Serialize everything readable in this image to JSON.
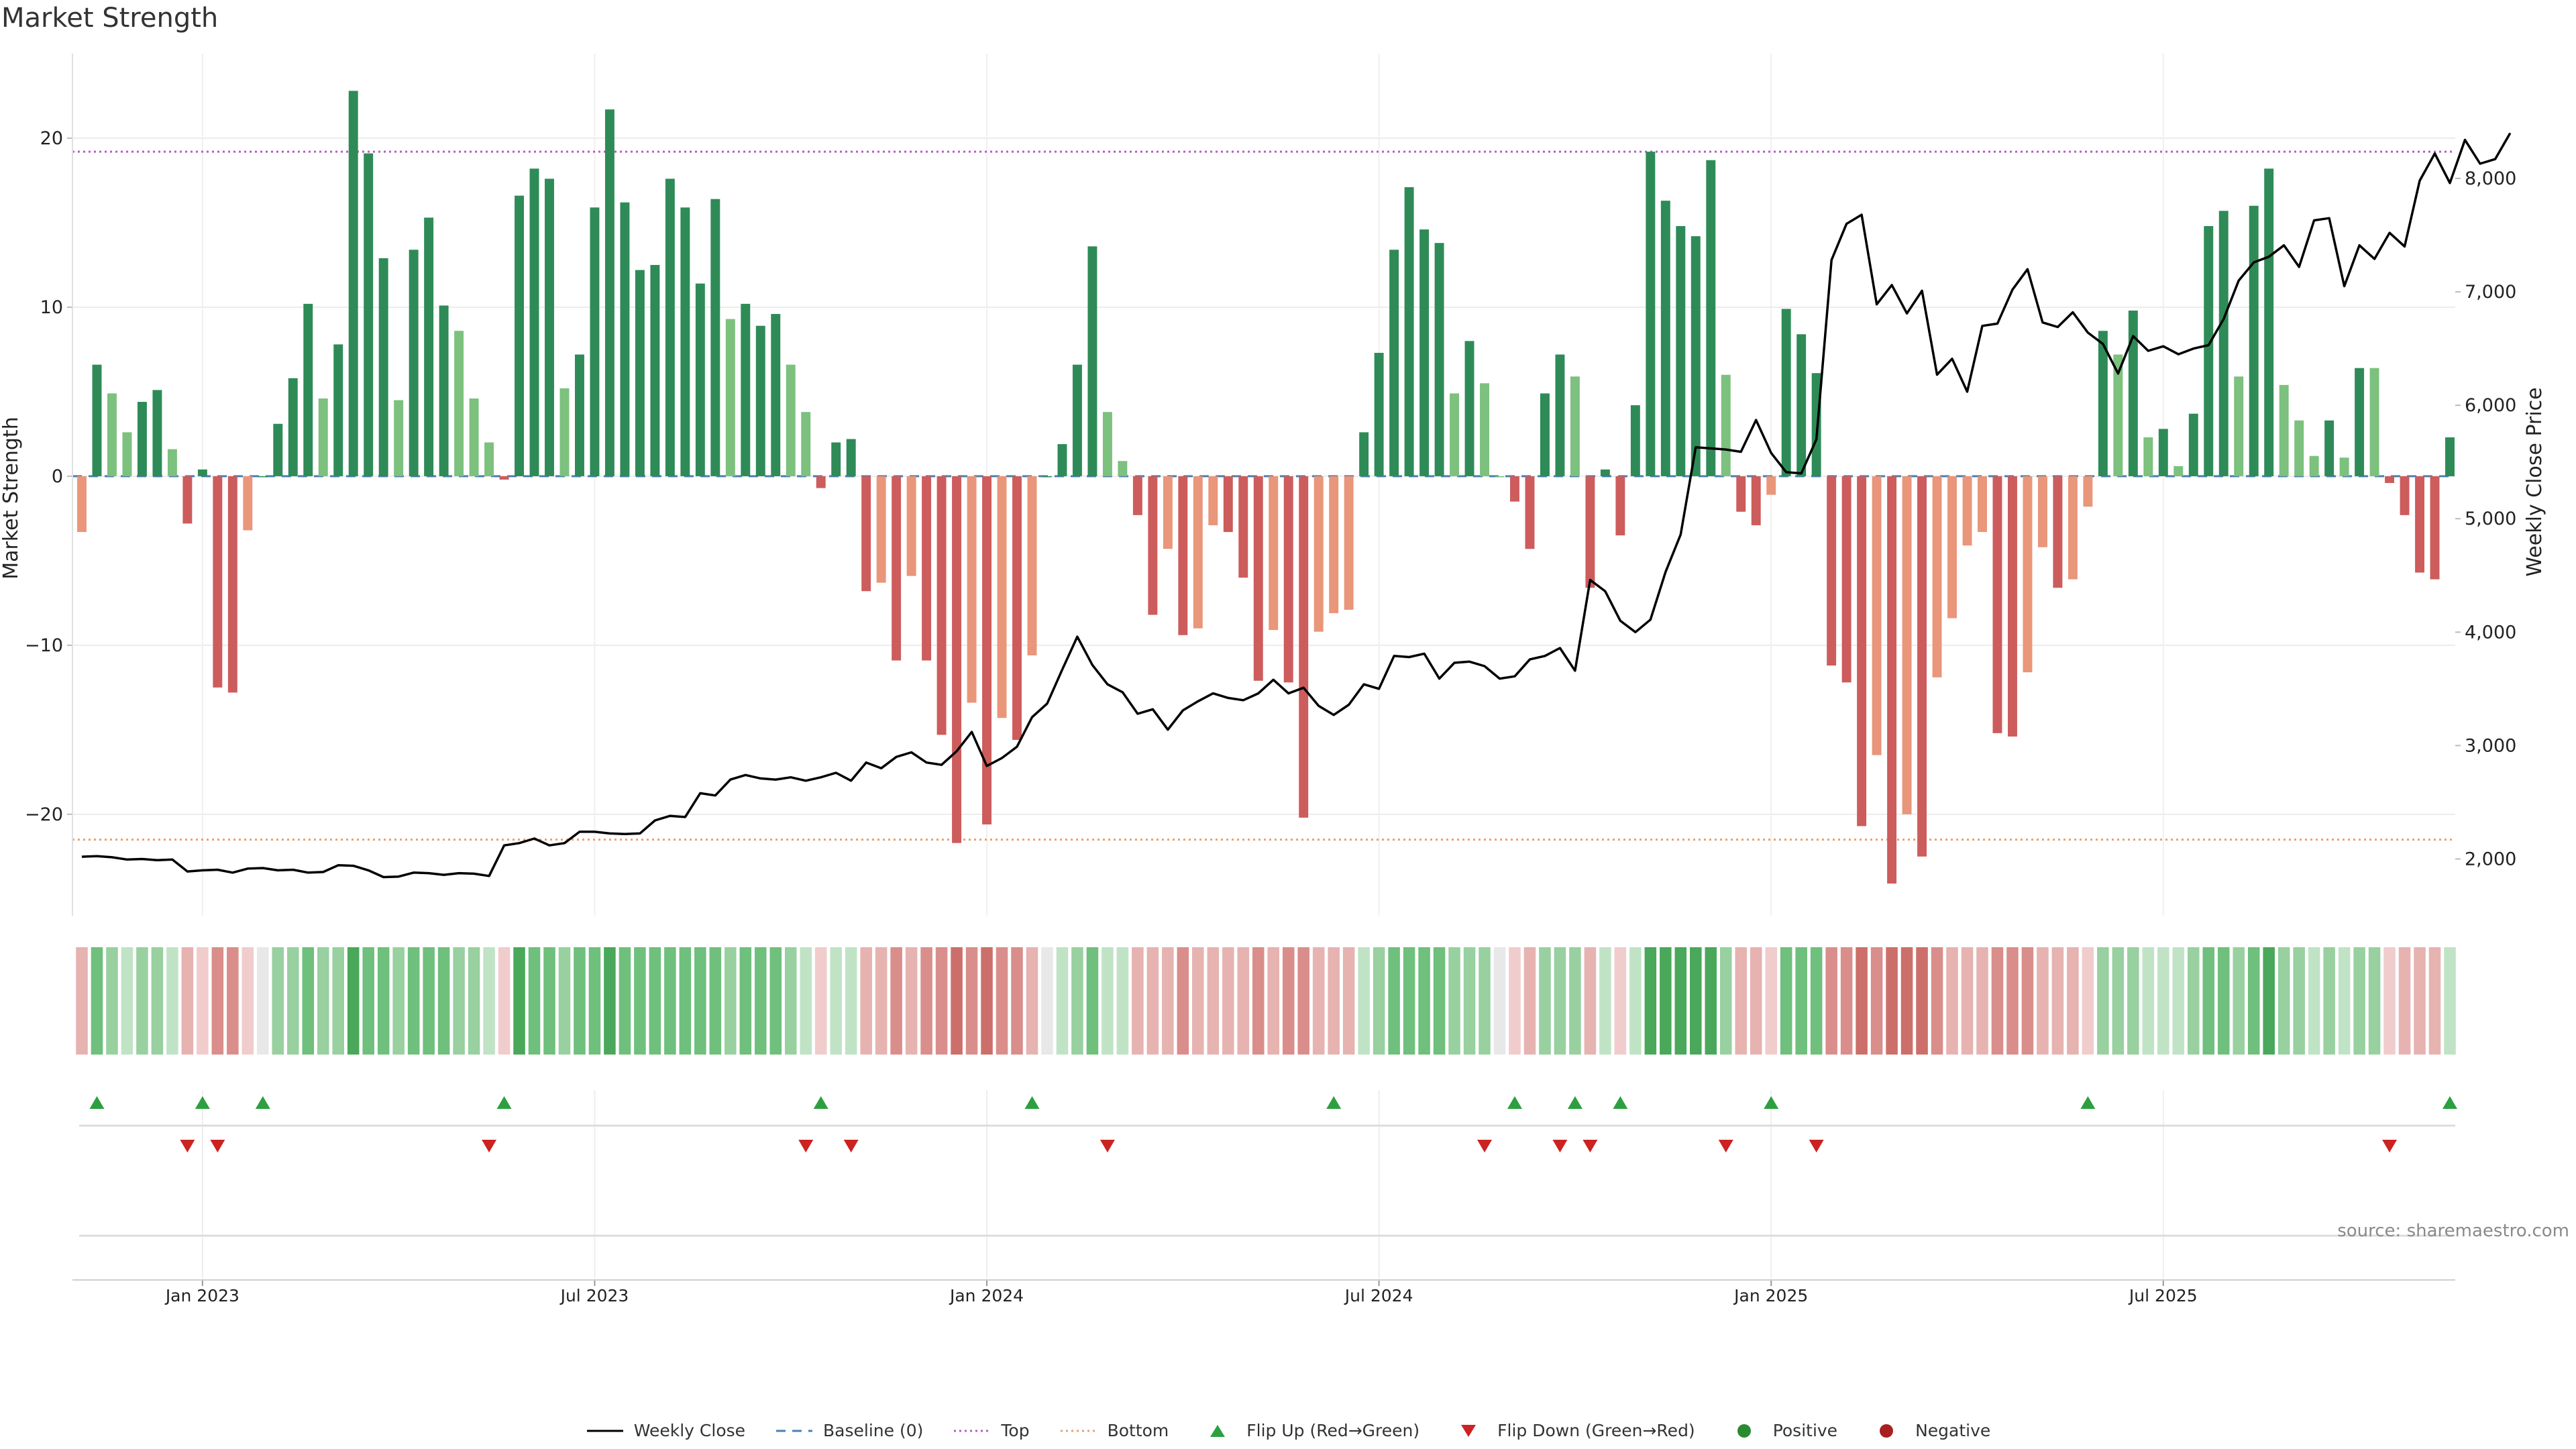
{
  "title": "Market Strength",
  "source": "source: sharemaestro.com",
  "colors": {
    "strong_pos": "#2e8b57",
    "weak_pos": "#7cc17e",
    "strong_neg": "#cd5c5c",
    "weak_neg": "#e9967a",
    "line": "#000000",
    "top": "#b05fc0",
    "bottom": "#e8a070",
    "baseline": "#4a7fb5",
    "flip_up": "#2ca040",
    "flip_down": "#cc2222"
  },
  "legend": [
    {
      "label": "Weekly Close",
      "icon": "solid-line"
    },
    {
      "label": "Baseline (0)",
      "icon": "dashed-line"
    },
    {
      "label": "Top",
      "icon": "dotted-line"
    },
    {
      "label": "Bottom",
      "icon": "dotted-line"
    },
    {
      "label": "Flip Up (Red→Green)",
      "icon": "triangle-up"
    },
    {
      "label": "Flip Down (Green→Red)",
      "icon": "triangle-down"
    },
    {
      "label": "Positive",
      "icon": "circle"
    },
    {
      "label": "Negative",
      "icon": "circle"
    }
  ],
  "chart_data": {
    "type": "bar",
    "ylabel": "Market Strength",
    "y2label": "Weekly Close Price",
    "ylim": [
      -26,
      25
    ],
    "y2lim": [
      1500,
      9100
    ],
    "yticks": [
      "20",
      "10",
      "0",
      "−10",
      "−20"
    ],
    "ytick_values": [
      20,
      10,
      0,
      -10,
      -20
    ],
    "y2ticks": [
      "8,000",
      "7,000",
      "6,000",
      "5,000",
      "4,000",
      "3,000",
      "2,000"
    ],
    "y2tick_values": [
      8000,
      7000,
      6000,
      5000,
      4000,
      3000,
      2000
    ],
    "xticks": [
      "Jan 2023",
      "Jul 2023",
      "Jan 2024",
      "Jul 2024",
      "Jan 2025",
      "Jul 2025"
    ],
    "xtick_weeks": [
      8,
      34,
      60,
      86,
      112,
      138
    ],
    "top_level": 19.2,
    "bottom_level": -21.5,
    "baseline": 0,
    "strength": [
      -3.3,
      6.6,
      4.9,
      2.6,
      4.4,
      5.1,
      1.6,
      -2.8,
      0.4,
      -12.5,
      -12.8,
      -3.2,
      0,
      3.1,
      5.8,
      10.2,
      4.6,
      7.8,
      22.8,
      19.1,
      12.9,
      4.5,
      13.4,
      15.3,
      10.1,
      8.6,
      4.6,
      2,
      -0.2,
      16.6,
      18.2,
      17.6,
      5.2,
      7.2,
      15.9,
      21.7,
      16.2,
      12.2,
      12.5,
      17.6,
      15.9,
      11.4,
      16.4,
      9.3,
      10.2,
      8.9,
      9.6,
      6.6,
      3.8,
      -0.7,
      2,
      2.2,
      -6.8,
      -6.3,
      -10.9,
      -5.9,
      -10.9,
      -15.3,
      -21.7,
      -13.4,
      -20.6,
      -14.3,
      -15.6,
      -10.6,
      0,
      1.9,
      6.6,
      13.6,
      3.8,
      0.9,
      -2.3,
      -8.2,
      -4.3,
      -9.4,
      -9,
      -2.9,
      -3.3,
      -6,
      -12.1,
      -9.1,
      -12.2,
      -20.2,
      -9.2,
      -8.1,
      -7.9,
      2.6,
      7.3,
      13.4,
      17.1,
      14.6,
      13.8,
      4.9,
      8,
      5.5,
      0,
      -1.5,
      -4.3,
      4.9,
      7.2,
      5.9,
      -6.6,
      0.4,
      -3.5,
      4.2,
      19.2,
      16.3,
      14.8,
      14.2,
      18.7,
      6,
      -2.1,
      -2.9,
      -1.1,
      9.9,
      8.4,
      6.1,
      -11.2,
      -12.2,
      -20.7,
      -16.5,
      -24.1,
      -20,
      -22.5,
      -11.9,
      -8.4,
      -4.1,
      -3.3,
      -15.2,
      -15.4,
      -11.6,
      -4.2,
      -6.6,
      -6.1,
      -1.8,
      8.6,
      7.2,
      9.8,
      2.3,
      2.8,
      0.6,
      3.7,
      14.8,
      15.7,
      5.9,
      16,
      18.2,
      5.4,
      3.3,
      1.2,
      3.3,
      1.1,
      6.4,
      6.4,
      -0.4,
      -2.3,
      -5.7,
      -6.1,
      2.3
    ],
    "close": [
      2020,
      2025,
      2015,
      1995,
      2000,
      1990,
      1995,
      1890,
      1900,
      1905,
      1880,
      1915,
      1920,
      1900,
      1905,
      1880,
      1885,
      1945,
      1940,
      1900,
      1840,
      1845,
      1880,
      1875,
      1860,
      1875,
      1870,
      1850,
      2120,
      2140,
      2180,
      2120,
      2140,
      2240,
      2240,
      2225,
      2220,
      2225,
      2340,
      2380,
      2370,
      2580,
      2560,
      2700,
      2740,
      2710,
      2700,
      2720,
      2690,
      2720,
      2760,
      2690,
      2850,
      2800,
      2900,
      2940,
      2850,
      2830,
      2950,
      3120,
      2820,
      2890,
      2990,
      3250,
      3370,
      3670,
      3960,
      3710,
      3540,
      3470,
      3280,
      3320,
      3140,
      3310,
      3390,
      3460,
      3420,
      3400,
      3460,
      3580,
      3460,
      3510,
      3350,
      3270,
      3360,
      3540,
      3500,
      3790,
      3780,
      3810,
      3590,
      3730,
      3740,
      3700,
      3590,
      3610,
      3760,
      3790,
      3860,
      3660,
      4460,
      4360,
      4100,
      4000,
      4110,
      4530,
      4860,
      5630,
      5620,
      5610,
      5590,
      5870,
      5580,
      5410,
      5400,
      5700,
      7280,
      7600,
      7680,
      6890,
      7060,
      6810,
      7010,
      6270,
      6410,
      6120,
      6700,
      6720,
      7020,
      7200,
      6730,
      6690,
      6820,
      6640,
      6540,
      6280,
      6610,
      6480,
      6520,
      6450,
      6500,
      6530,
      6760,
      7100,
      7260,
      7310,
      7410,
      7220,
      7630,
      7650,
      7050,
      7410,
      7290,
      7520,
      7400,
      7980,
      8220,
      7960,
      8340,
      8130,
      8170,
      8400
    ],
    "shade": [
      -2,
      3,
      2,
      1,
      2,
      2,
      1,
      -2,
      -1,
      -3,
      -3,
      -1,
      0,
      2,
      2,
      3,
      2,
      2,
      4,
      3,
      3,
      2,
      3,
      3,
      3,
      2,
      2,
      1,
      -1,
      4,
      3,
      3,
      2,
      3,
      3,
      4,
      3,
      3,
      3,
      3,
      3,
      3,
      3,
      2,
      3,
      3,
      3,
      2,
      1,
      -1,
      1,
      1,
      -2,
      -2,
      -3,
      -2,
      -3,
      -3,
      -4,
      -3,
      -4,
      -3,
      -3,
      -2,
      0,
      1,
      2,
      3,
      1,
      1,
      -2,
      -2,
      -2,
      -3,
      -2,
      -2,
      -2,
      -2,
      -3,
      -2,
      -3,
      -3,
      -2,
      -2,
      -2,
      1,
      2,
      3,
      3,
      3,
      3,
      2,
      2,
      2,
      0,
      -1,
      -2,
      2,
      2,
      2,
      -2,
      1,
      -1,
      1,
      4,
      4,
      4,
      4,
      4,
      2,
      -2,
      -2,
      -1,
      3,
      3,
      3,
      -3,
      -3,
      -4,
      -3,
      -4,
      -4,
      -4,
      -3,
      -2,
      -2,
      -2,
      -3,
      -3,
      -3,
      -2,
      -2,
      -2,
      -1,
      2,
      2,
      2,
      1,
      1,
      1,
      2,
      3,
      3,
      2,
      3,
      4,
      2,
      2,
      1,
      2,
      1,
      2,
      2,
      -1,
      -2,
      -2,
      -2,
      1
    ],
    "flip_up_weeks": [
      1,
      8,
      12,
      28,
      49,
      63,
      83,
      95,
      99,
      102,
      112,
      133,
      157
    ],
    "flip_down_weeks": [
      7,
      9,
      27,
      48,
      51,
      68,
      93,
      98,
      100,
      109,
      115,
      153
    ]
  }
}
